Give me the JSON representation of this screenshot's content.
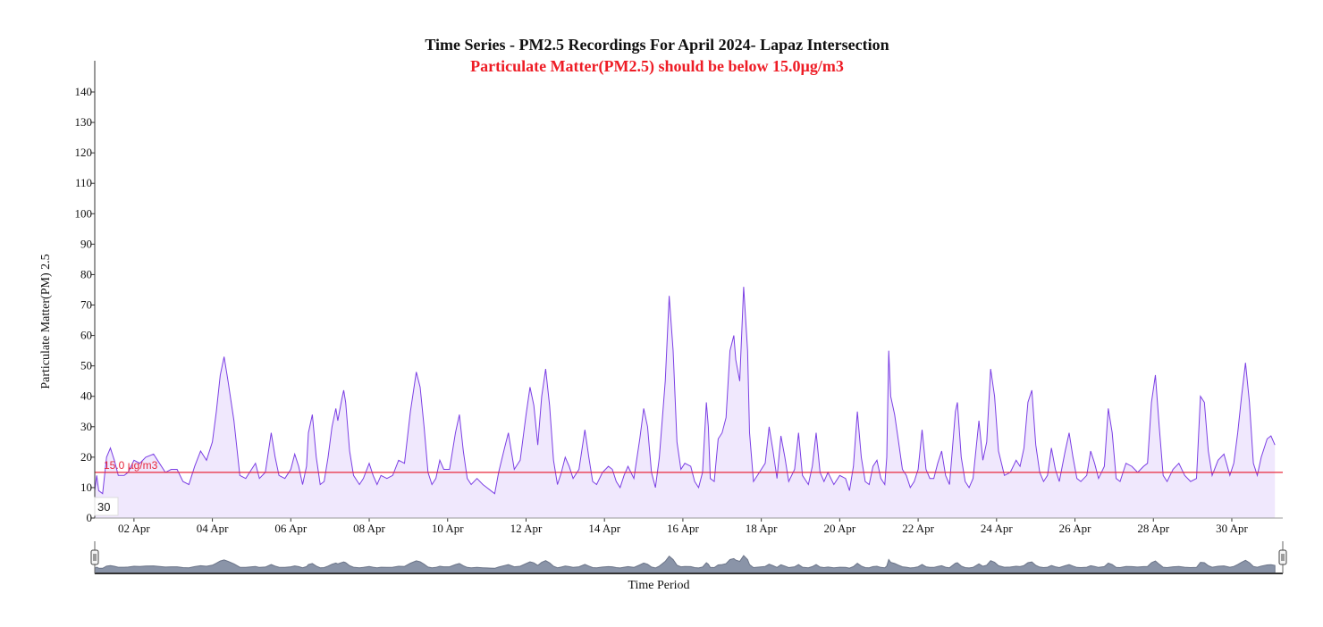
{
  "chart_data": {
    "type": "area",
    "title": "Time Series - PM2.5 Recordings For April 2024- Lapaz Intersection",
    "subtitle": "Particulate Matter(PM2.5) should be below 15.0µg/m3",
    "xlabel": "Time Period",
    "ylabel": "Particulate Matter(PM) 2.5",
    "ylim": [
      0,
      140
    ],
    "yticks": [
      0,
      10,
      20,
      30,
      40,
      50,
      60,
      70,
      80,
      90,
      100,
      110,
      120,
      130,
      140
    ],
    "xlim": [
      1.0,
      31.3
    ],
    "xtick_labels": [
      {
        "day": 2,
        "label": "02 Apr"
      },
      {
        "day": 4,
        "label": "04 Apr"
      },
      {
        "day": 6,
        "label": "06 Apr"
      },
      {
        "day": 8,
        "label": "08 Apr"
      },
      {
        "day": 10,
        "label": "10 Apr"
      },
      {
        "day": 12,
        "label": "12 Apr"
      },
      {
        "day": 14,
        "label": "14 Apr"
      },
      {
        "day": 16,
        "label": "16 Apr"
      },
      {
        "day": 18,
        "label": "18 Apr"
      },
      {
        "day": 20,
        "label": "20 Apr"
      },
      {
        "day": 22,
        "label": "22 Apr"
      },
      {
        "day": 24,
        "label": "24 Apr"
      },
      {
        "day": 26,
        "label": "26 Apr"
      },
      {
        "day": 28,
        "label": "28 Apr"
      },
      {
        "day": 30,
        "label": "30 Apr"
      }
    ],
    "threshold": {
      "value": 15.0,
      "label": "15.0 µg/m3",
      "color": "#e8283c"
    },
    "badge_label": "30",
    "line_color": "#7b3fe4",
    "fill_color": "#f0e8fd",
    "navigator_color": "#8a94a8",
    "series": [
      {
        "x_unit": "day of April 2024",
        "points": [
          [
            1.0,
            9
          ],
          [
            1.05,
            14
          ],
          [
            1.1,
            9
          ],
          [
            1.2,
            8
          ],
          [
            1.3,
            20
          ],
          [
            1.4,
            23
          ],
          [
            1.5,
            19
          ],
          [
            1.6,
            14
          ],
          [
            1.75,
            14
          ],
          [
            1.85,
            15
          ],
          [
            2.0,
            19
          ],
          [
            2.15,
            18
          ],
          [
            2.3,
            20
          ],
          [
            2.5,
            21
          ],
          [
            2.65,
            18
          ],
          [
            2.8,
            15
          ],
          [
            2.95,
            16
          ],
          [
            3.1,
            16
          ],
          [
            3.25,
            12
          ],
          [
            3.4,
            11
          ],
          [
            3.55,
            17
          ],
          [
            3.7,
            22
          ],
          [
            3.85,
            19
          ],
          [
            4.0,
            25
          ],
          [
            4.1,
            35
          ],
          [
            4.2,
            47
          ],
          [
            4.3,
            53
          ],
          [
            4.4,
            45
          ],
          [
            4.55,
            32
          ],
          [
            4.7,
            14
          ],
          [
            4.85,
            13
          ],
          [
            5.0,
            16
          ],
          [
            5.1,
            18
          ],
          [
            5.2,
            13
          ],
          [
            5.35,
            15
          ],
          [
            5.5,
            28
          ],
          [
            5.6,
            20
          ],
          [
            5.7,
            14
          ],
          [
            5.85,
            13
          ],
          [
            6.0,
            16
          ],
          [
            6.1,
            21
          ],
          [
            6.2,
            17
          ],
          [
            6.3,
            11
          ],
          [
            6.4,
            17
          ],
          [
            6.45,
            28
          ],
          [
            6.55,
            34
          ],
          [
            6.65,
            20
          ],
          [
            6.75,
            11
          ],
          [
            6.85,
            12
          ],
          [
            6.95,
            20
          ],
          [
            7.05,
            30
          ],
          [
            7.15,
            36
          ],
          [
            7.2,
            32
          ],
          [
            7.3,
            39
          ],
          [
            7.35,
            42
          ],
          [
            7.4,
            38
          ],
          [
            7.5,
            22
          ],
          [
            7.6,
            14
          ],
          [
            7.75,
            11
          ],
          [
            7.85,
            13
          ],
          [
            8.0,
            18
          ],
          [
            8.1,
            14
          ],
          [
            8.2,
            11
          ],
          [
            8.3,
            14
          ],
          [
            8.45,
            13
          ],
          [
            8.6,
            14
          ],
          [
            8.75,
            19
          ],
          [
            8.9,
            18
          ],
          [
            9.05,
            35
          ],
          [
            9.2,
            48
          ],
          [
            9.3,
            43
          ],
          [
            9.4,
            30
          ],
          [
            9.5,
            15
          ],
          [
            9.6,
            11
          ],
          [
            9.7,
            13
          ],
          [
            9.8,
            19
          ],
          [
            9.9,
            16
          ],
          [
            10.05,
            16
          ],
          [
            10.2,
            28
          ],
          [
            10.3,
            34
          ],
          [
            10.4,
            22
          ],
          [
            10.5,
            13
          ],
          [
            10.6,
            11
          ],
          [
            10.75,
            13
          ],
          [
            10.9,
            11
          ],
          [
            11.0,
            10
          ],
          [
            11.1,
            9
          ],
          [
            11.2,
            8
          ],
          [
            11.3,
            15
          ],
          [
            11.45,
            23
          ],
          [
            11.55,
            28
          ],
          [
            11.7,
            16
          ],
          [
            11.85,
            19
          ],
          [
            12.0,
            34
          ],
          [
            12.1,
            43
          ],
          [
            12.2,
            37
          ],
          [
            12.3,
            24
          ],
          [
            12.4,
            40
          ],
          [
            12.5,
            49
          ],
          [
            12.6,
            37
          ],
          [
            12.7,
            19
          ],
          [
            12.8,
            11
          ],
          [
            12.9,
            15
          ],
          [
            13.0,
            20
          ],
          [
            13.1,
            17
          ],
          [
            13.2,
            13
          ],
          [
            13.35,
            16
          ],
          [
            13.5,
            29
          ],
          [
            13.6,
            20
          ],
          [
            13.7,
            12
          ],
          [
            13.8,
            11
          ],
          [
            13.95,
            15
          ],
          [
            14.1,
            17
          ],
          [
            14.2,
            16
          ],
          [
            14.3,
            12
          ],
          [
            14.4,
            10
          ],
          [
            14.5,
            14
          ],
          [
            14.6,
            17
          ],
          [
            14.75,
            13
          ],
          [
            14.9,
            26
          ],
          [
            15.0,
            36
          ],
          [
            15.1,
            30
          ],
          [
            15.2,
            15
          ],
          [
            15.3,
            10
          ],
          [
            15.4,
            20
          ],
          [
            15.55,
            45
          ],
          [
            15.65,
            73
          ],
          [
            15.75,
            55
          ],
          [
            15.85,
            25
          ],
          [
            15.95,
            16
          ],
          [
            16.05,
            18
          ],
          [
            16.2,
            17
          ],
          [
            16.3,
            12
          ],
          [
            16.4,
            10
          ],
          [
            16.5,
            15
          ],
          [
            16.6,
            38
          ],
          [
            16.65,
            30
          ],
          [
            16.7,
            13
          ],
          [
            16.8,
            12
          ],
          [
            16.9,
            26
          ],
          [
            17.0,
            28
          ],
          [
            17.1,
            33
          ],
          [
            17.2,
            55
          ],
          [
            17.3,
            60
          ],
          [
            17.35,
            52
          ],
          [
            17.45,
            45
          ],
          [
            17.55,
            76
          ],
          [
            17.65,
            55
          ],
          [
            17.7,
            28
          ],
          [
            17.8,
            12
          ],
          [
            17.95,
            15
          ],
          [
            18.1,
            18
          ],
          [
            18.2,
            30
          ],
          [
            18.3,
            22
          ],
          [
            18.4,
            13
          ],
          [
            18.5,
            27
          ],
          [
            18.6,
            20
          ],
          [
            18.7,
            12
          ],
          [
            18.85,
            16
          ],
          [
            18.95,
            28
          ],
          [
            19.05,
            14
          ],
          [
            19.2,
            11
          ],
          [
            19.3,
            17
          ],
          [
            19.4,
            28
          ],
          [
            19.5,
            15
          ],
          [
            19.6,
            12
          ],
          [
            19.7,
            15
          ],
          [
            19.85,
            11
          ],
          [
            20.0,
            14
          ],
          [
            20.15,
            13
          ],
          [
            20.25,
            9
          ],
          [
            20.35,
            17
          ],
          [
            20.45,
            35
          ],
          [
            20.55,
            20
          ],
          [
            20.65,
            12
          ],
          [
            20.75,
            11
          ],
          [
            20.85,
            17
          ],
          [
            20.95,
            19
          ],
          [
            21.05,
            13
          ],
          [
            21.15,
            11
          ],
          [
            21.2,
            20
          ],
          [
            21.25,
            55
          ],
          [
            21.3,
            40
          ],
          [
            21.4,
            34
          ],
          [
            21.5,
            25
          ],
          [
            21.6,
            16
          ],
          [
            21.7,
            14
          ],
          [
            21.8,
            10
          ],
          [
            21.9,
            12
          ],
          [
            22.0,
            16
          ],
          [
            22.1,
            29
          ],
          [
            22.2,
            16
          ],
          [
            22.3,
            13
          ],
          [
            22.4,
            13
          ],
          [
            22.5,
            18
          ],
          [
            22.6,
            22
          ],
          [
            22.7,
            14
          ],
          [
            22.8,
            11
          ],
          [
            22.95,
            35
          ],
          [
            23.0,
            38
          ],
          [
            23.1,
            20
          ],
          [
            23.2,
            12
          ],
          [
            23.3,
            10
          ],
          [
            23.4,
            13
          ],
          [
            23.55,
            32
          ],
          [
            23.65,
            19
          ],
          [
            23.75,
            25
          ],
          [
            23.85,
            49
          ],
          [
            23.95,
            40
          ],
          [
            24.05,
            22
          ],
          [
            24.2,
            14
          ],
          [
            24.35,
            15
          ],
          [
            24.5,
            19
          ],
          [
            24.6,
            17
          ],
          [
            24.7,
            23
          ],
          [
            24.8,
            38
          ],
          [
            24.9,
            42
          ],
          [
            25.0,
            24
          ],
          [
            25.1,
            15
          ],
          [
            25.2,
            12
          ],
          [
            25.3,
            14
          ],
          [
            25.4,
            23
          ],
          [
            25.5,
            16
          ],
          [
            25.6,
            12
          ],
          [
            25.75,
            22
          ],
          [
            25.85,
            28
          ],
          [
            25.95,
            20
          ],
          [
            26.05,
            13
          ],
          [
            26.15,
            12
          ],
          [
            26.3,
            14
          ],
          [
            26.4,
            22
          ],
          [
            26.5,
            18
          ],
          [
            26.6,
            13
          ],
          [
            26.75,
            17
          ],
          [
            26.85,
            36
          ],
          [
            26.95,
            28
          ],
          [
            27.05,
            13
          ],
          [
            27.15,
            12
          ],
          [
            27.3,
            18
          ],
          [
            27.45,
            17
          ],
          [
            27.6,
            15
          ],
          [
            27.75,
            17
          ],
          [
            27.85,
            18
          ],
          [
            27.95,
            38
          ],
          [
            28.05,
            47
          ],
          [
            28.15,
            30
          ],
          [
            28.25,
            14
          ],
          [
            28.35,
            12
          ],
          [
            28.5,
            16
          ],
          [
            28.65,
            18
          ],
          [
            28.8,
            14
          ],
          [
            28.95,
            12
          ],
          [
            29.1,
            13
          ],
          [
            29.2,
            40
          ],
          [
            29.3,
            38
          ],
          [
            29.4,
            22
          ],
          [
            29.5,
            14
          ],
          [
            29.65,
            19
          ],
          [
            29.8,
            21
          ],
          [
            29.95,
            14
          ],
          [
            30.05,
            18
          ],
          [
            30.15,
            28
          ],
          [
            30.25,
            40
          ],
          [
            30.35,
            51
          ],
          [
            30.45,
            38
          ],
          [
            30.55,
            18
          ],
          [
            30.65,
            14
          ],
          [
            30.75,
            20
          ],
          [
            30.9,
            26
          ],
          [
            31.0,
            27
          ],
          [
            31.1,
            24
          ]
        ]
      }
    ]
  }
}
